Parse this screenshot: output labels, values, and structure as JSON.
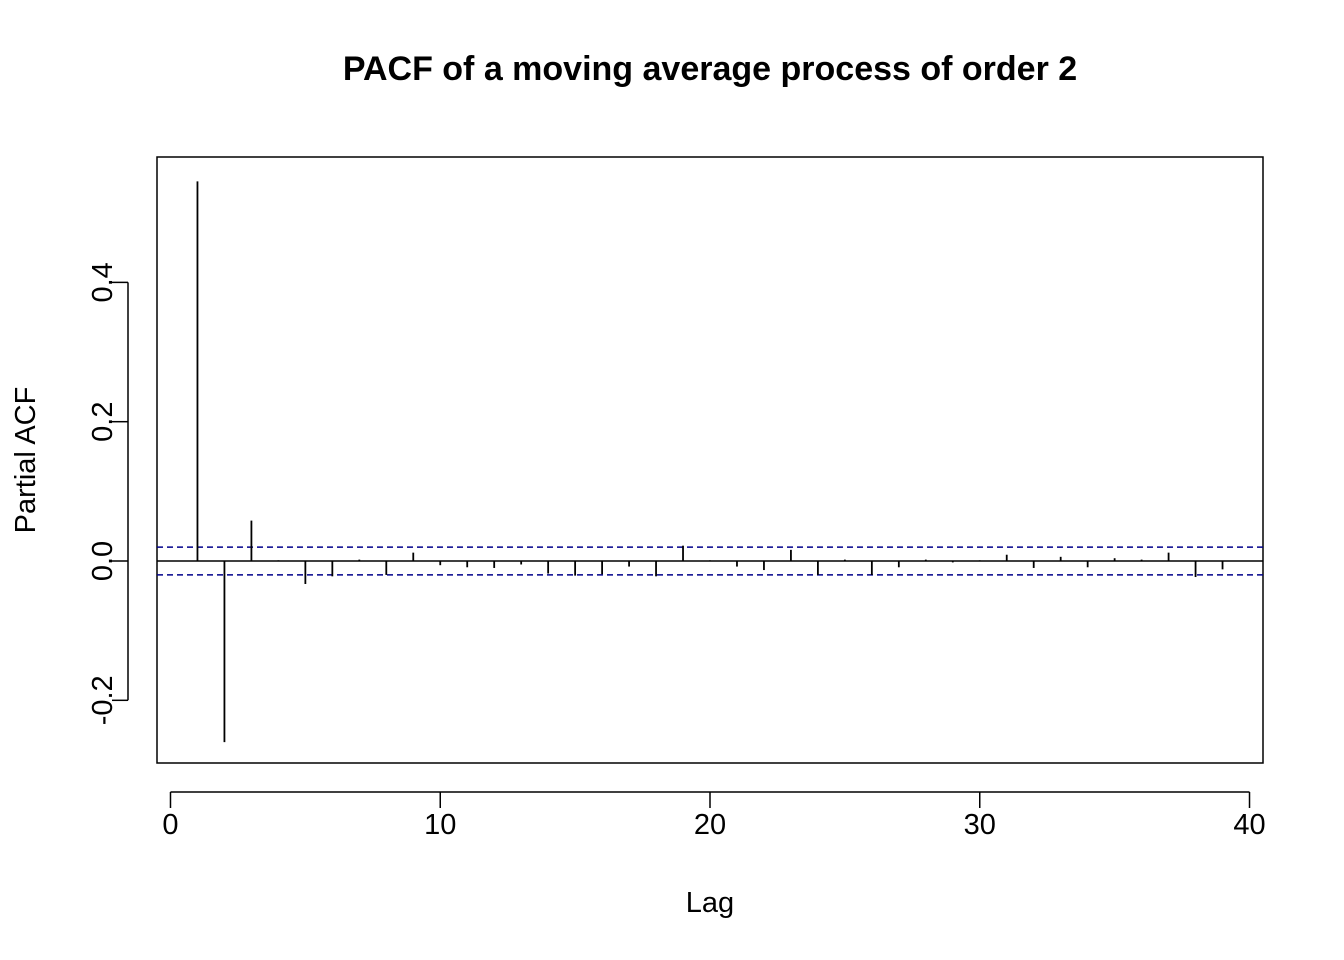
{
  "chart_data": {
    "type": "bar",
    "title": "PACF of a moving average process of order 2",
    "xlabel": "Lag",
    "ylabel": "Partial ACF",
    "xlim": [
      -0.5,
      40.5
    ],
    "ylim": [
      -0.29,
      0.58
    ],
    "x_ticks": [
      0,
      10,
      20,
      30,
      40
    ],
    "x_tick_labels": [
      "0",
      "10",
      "20",
      "30",
      "40"
    ],
    "y_ticks": [
      -0.2,
      0.0,
      0.2,
      0.4
    ],
    "y_tick_labels": [
      "-0.2",
      "0.0",
      "0.2",
      "0.4"
    ],
    "lags": [
      1,
      2,
      3,
      4,
      5,
      6,
      7,
      8,
      9,
      10,
      11,
      12,
      13,
      14,
      15,
      16,
      17,
      18,
      19,
      20,
      21,
      22,
      23,
      24,
      25,
      26,
      27,
      28,
      29,
      30,
      31,
      32,
      33,
      34,
      35,
      36,
      37,
      38,
      39,
      40
    ],
    "values": [
      0.545,
      -0.26,
      0.058,
      0.001,
      -0.033,
      -0.022,
      0.002,
      -0.02,
      0.012,
      -0.006,
      -0.009,
      -0.01,
      -0.005,
      -0.018,
      -0.021,
      -0.019,
      -0.008,
      -0.022,
      0.022,
      0.001,
      -0.008,
      -0.013,
      0.016,
      -0.02,
      0.002,
      -0.02,
      -0.009,
      0.002,
      -0.002,
      0.001,
      0.009,
      -0.01,
      0.006,
      -0.009,
      0.004,
      0.002,
      0.012,
      -0.023,
      -0.012,
      0.0
    ],
    "confidence_bound": 0.02,
    "grid": false,
    "colors": {
      "bars": "#000000",
      "confidence_lines": "#00008B",
      "zero_line": "#000000"
    }
  }
}
